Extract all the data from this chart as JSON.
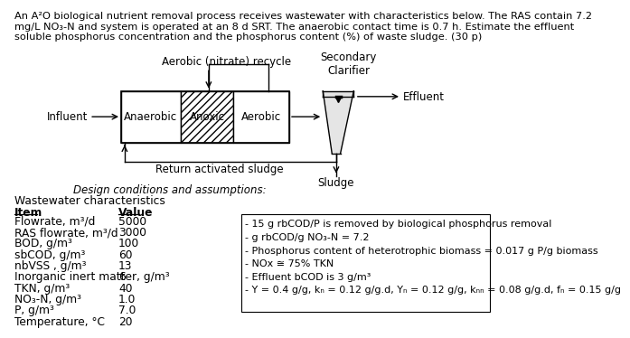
{
  "header_text": "An A²O biological nutrient removal process receives wastewater with characteristics below. The RAS contain 7.2\nmg/L NO₃-N and system is operated at an 8 d SRT. The anaerobic contact time is 0.7 h. Estimate the effluent\nsoluble phosphorus concentration and the phosphorus content (%) of waste sludge. (30 p)",
  "diagram_label_aerobic_recycle": "Aerobic (nitrate) recycle",
  "diagram_label_secondary_clarifier": "Secondary\nClarifier",
  "diagram_label_effluent": "Effluent",
  "diagram_label_influent": "Influent",
  "diagram_label_anaerobic": "Anaerobic",
  "diagram_label_anoxic": "Anoxic",
  "diagram_label_aerobic": "Aerobic",
  "diagram_label_return_sludge": "Return activated sludge",
  "diagram_label_sludge": "Sludge",
  "diagram_label_design": "Design conditions and assumptions:",
  "table_title": "Wastewater characteristics",
  "table_items": [
    [
      "Item",
      "Value"
    ],
    [
      "Flowrate, m³/d",
      "5000"
    ],
    [
      "RAS flowrate, m³/d",
      "3000"
    ],
    [
      "BOD, g/m³",
      "100"
    ],
    [
      "sbCOD, g/m³",
      "60"
    ],
    [
      "nbVSS , g/m³",
      "13"
    ],
    [
      "Inorganic inert matter, g/m³",
      "6"
    ],
    [
      "TKN, g/m³",
      "40"
    ],
    [
      "NO₃-N, g/m³",
      "1.0"
    ],
    [
      "P, g/m³",
      "7.0"
    ],
    [
      "Temperature, °C",
      "20"
    ]
  ],
  "conditions": [
    "- 15 g rbCOD/P is removed by biological phosphorus removal",
    "- g rbCOD/g NO₃-N = 7.2",
    "- Phosphorus content of heterotrophic biomass = 0.017 g P/g biomass",
    "- NOx ≅ 75% TKN",
    "- Effluent bCOD is 3 g/m³",
    "- Y = 0.4 g/g, kₙ = 0.12 g/g.d, Yₙ = 0.12 g/g, kₙₙ = 0.08 g/g.d, fₙ = 0.15 g/g"
  ],
  "bg_color": "#ffffff"
}
